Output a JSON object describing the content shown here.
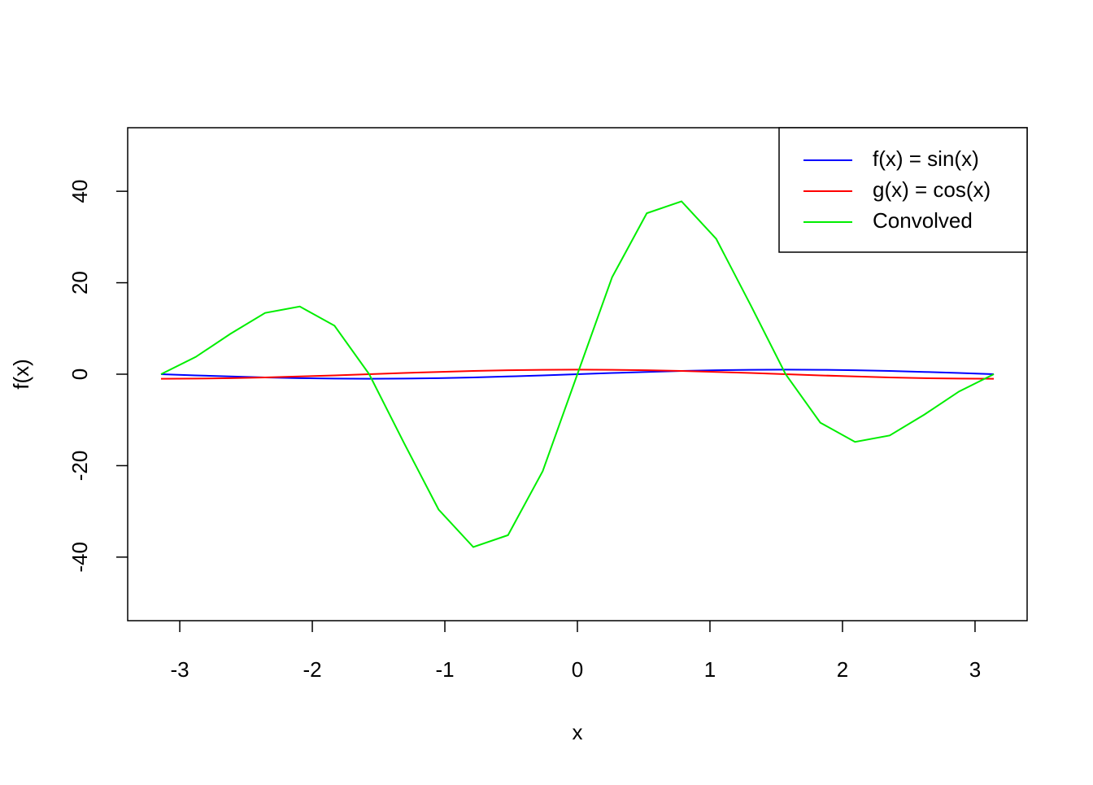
{
  "chart_data": {
    "type": "line",
    "xlabel": "x",
    "ylabel": "f(x)",
    "x": [
      -3.1416,
      -2.8798,
      -2.618,
      -2.3562,
      -2.0944,
      -1.8326,
      -1.5708,
      -1.309,
      -1.0472,
      -0.7854,
      -0.5236,
      -0.2618,
      0,
      0.2618,
      0.5236,
      0.7854,
      1.0472,
      1.309,
      1.5708,
      1.8326,
      2.0944,
      2.3562,
      2.618,
      2.8798,
      3.1416
    ],
    "series": [
      {
        "name": "f(x) = sin(x)",
        "color": "#0000ff",
        "values": [
          0,
          -0.2588,
          -0.5,
          -0.7071,
          -0.866,
          -0.9659,
          -1,
          -0.9659,
          -0.866,
          -0.7071,
          -0.5,
          -0.2588,
          0,
          0.2588,
          0.5,
          0.7071,
          0.866,
          0.9659,
          1,
          0.9659,
          0.866,
          0.7071,
          0.5,
          0.2588,
          0
        ]
      },
      {
        "name": "g(x) = cos(x)",
        "color": "#ff0000",
        "values": [
          -1,
          -0.9659,
          -0.866,
          -0.7071,
          -0.5,
          -0.2588,
          0,
          0.2588,
          0.5,
          0.7071,
          0.866,
          0.9659,
          1,
          0.9659,
          0.866,
          0.7071,
          0.5,
          0.2588,
          0,
          -0.2588,
          -0.5,
          -0.7071,
          -0.866,
          -0.9659,
          -1
        ]
      },
      {
        "name": "Convolved",
        "color": "#00ee00",
        "values": [
          0,
          3.77,
          8.83,
          13.4,
          14.8,
          10.6,
          0,
          -15.0,
          -29.6,
          -37.8,
          -35.2,
          -21.2,
          0,
          21.2,
          35.2,
          37.8,
          29.6,
          15.0,
          0,
          -10.6,
          -14.8,
          -13.4,
          -8.83,
          -3.77,
          0
        ]
      }
    ],
    "xlim": [
      -3.393,
      3.393
    ],
    "xticks": [
      -3,
      -2,
      -1,
      0,
      1,
      2,
      3
    ],
    "ylim": [
      -53.9,
      53.9
    ],
    "yticks": [
      -40,
      -20,
      0,
      20,
      40
    ],
    "legend": "top-right",
    "grid": false
  }
}
